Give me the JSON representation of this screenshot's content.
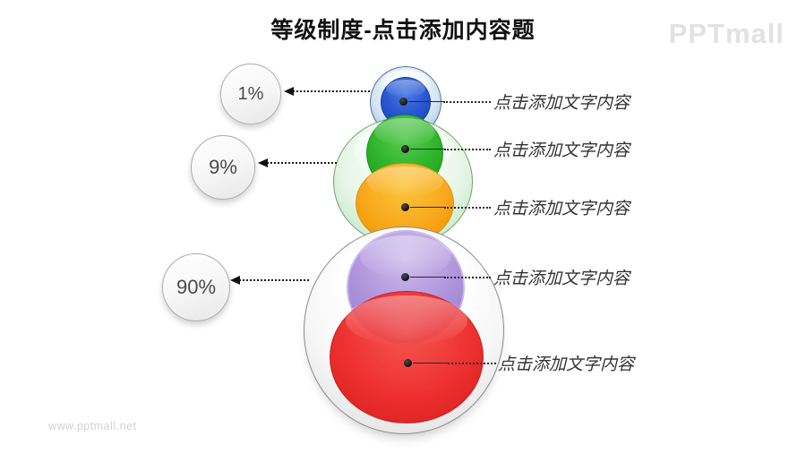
{
  "title": "等级制度-点击添加内容题",
  "logo": "PPTmall",
  "watermark": "www.pptmall.net",
  "diagram": {
    "type": "stacked-sphere-hierarchy",
    "levels": [
      {
        "sphere": "blue",
        "color": "#2A58D0",
        "label": "点击添加文字内容"
      },
      {
        "sphere": "green",
        "color": "#2EB42A",
        "label": "点击添加文字内容"
      },
      {
        "sphere": "orange",
        "color": "#F8A91D",
        "label": "点击添加文字内容"
      },
      {
        "sphere": "purple",
        "color": "#9C7CD3",
        "label": "点击添加文字内容"
      },
      {
        "sphere": "red",
        "color": "#EC1A1A",
        "label": "点击添加文字内容"
      }
    ],
    "callouts": [
      {
        "value": "1%",
        "points_to": "blue sphere"
      },
      {
        "value": "9%",
        "points_to": "green sphere"
      },
      {
        "value": "90%",
        "points_to": "large bottom sphere"
      }
    ]
  },
  "colors": {
    "glass_blue": "#CEE3F4",
    "glass_green": "#E0F3E0",
    "glass_gray": "#F0F0F0",
    "label_text": "#333333",
    "title_text": "#111111",
    "logo_gray": "#E2E2E2",
    "watermark_gray": "#D2D2D2"
  }
}
